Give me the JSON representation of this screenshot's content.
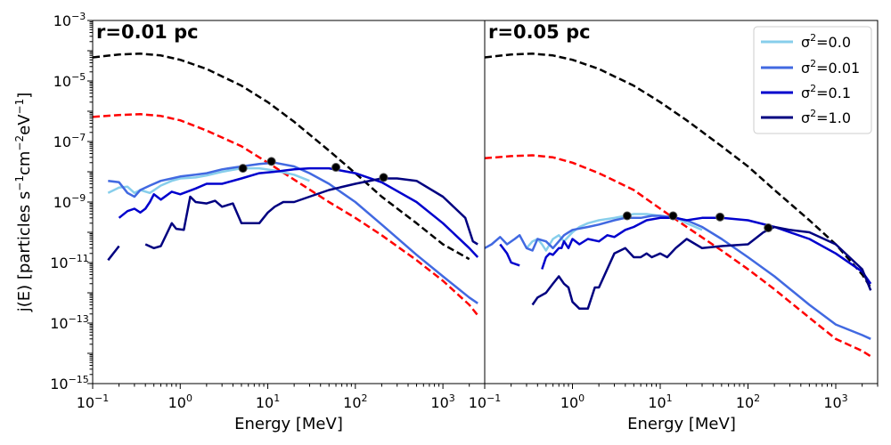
{
  "figure": {
    "ylabel": "j(E) [particles s",
    "ylabel_sup1": "−1",
    "ylabel_mid": "cm",
    "ylabel_sup2": "−2",
    "ylabel_end": "eV",
    "ylabel_sup3": "−1",
    "ylabel_close": "]"
  },
  "legend": {
    "location": "top-right of right panel",
    "entries": [
      {
        "base": "σ",
        "sup": "2",
        "rest": "=0.0",
        "color": "#87ceeb"
      },
      {
        "base": "σ",
        "sup": "2",
        "rest": "=0.01",
        "color": "#4169e1"
      },
      {
        "base": "σ",
        "sup": "2",
        "rest": "=0.1",
        "color": "#0000cd"
      },
      {
        "base": "σ",
        "sup": "2",
        "rest": "=1.0",
        "color": "#000080"
      }
    ]
  },
  "chart_data": [
    {
      "type": "line",
      "title": "r=0.01 pc",
      "xlabel": "Energy [MeV]",
      "ylabel": "j(E) [particles s^-1 cm^-2 eV^-1]",
      "xscale": "log",
      "yscale": "log",
      "xlim": [
        0.1,
        3000
      ],
      "ylim": [
        1e-15,
        0.001
      ],
      "xticks": [
        {
          "base": "10",
          "exp": "−1",
          "value": 0.1
        },
        {
          "base": "10",
          "exp": "0",
          "value": 1
        },
        {
          "base": "10",
          "exp": "1",
          "value": 10
        },
        {
          "base": "10",
          "exp": "2",
          "value": 100
        },
        {
          "base": "10",
          "exp": "3",
          "value": 1000
        }
      ],
      "yticks": [
        {
          "base": "10",
          "exp": "−15",
          "value": 1e-15
        },
        {
          "base": "10",
          "exp": "−13",
          "value": 1e-13
        },
        {
          "base": "10",
          "exp": "−11",
          "value": 1e-11
        },
        {
          "base": "10",
          "exp": "−9",
          "value": 1e-09
        },
        {
          "base": "10",
          "exp": "−7",
          "value": 1e-07
        },
        {
          "base": "10",
          "exp": "−5",
          "value": 1e-05
        },
        {
          "base": "10",
          "exp": "−3",
          "value": 0.001
        }
      ],
      "series": [
        {
          "name": "reference black dashed",
          "color": "#000000",
          "dash": true,
          "x": [
            0.1,
            0.2,
            0.35,
            0.6,
            1,
            2,
            5,
            10,
            20,
            50,
            100,
            200,
            500,
            1000,
            2000
          ],
          "y": [
            6e-05,
            7.5e-05,
            8e-05,
            7e-05,
            5e-05,
            2.5e-05,
            7e-06,
            2e-06,
            4.5e-07,
            5e-08,
            9e-09,
            1.5e-09,
            2e-10,
            4e-11,
            1.3e-11
          ]
        },
        {
          "name": "reference red dashed",
          "color": "#ff0000",
          "dash": true,
          "x": [
            0.1,
            0.2,
            0.35,
            0.6,
            1,
            2,
            5,
            10,
            20,
            50,
            100,
            200,
            500,
            1000,
            2000,
            2500
          ],
          "y": [
            6.5e-07,
            7.5e-07,
            8e-07,
            7e-07,
            5e-07,
            2.3e-07,
            7e-08,
            2e-08,
            5.5e-09,
            1e-09,
            3e-10,
            8e-11,
            1.2e-11,
            2.5e-12,
            4e-13,
            1.8e-13
          ]
        },
        {
          "name": "σ²=0.0",
          "color": "#87ceeb",
          "dash": false,
          "x": [
            0.15,
            0.2,
            0.25,
            0.3,
            0.35,
            0.45,
            0.6,
            0.8,
            1,
            1.5,
            2,
            3,
            5,
            8,
            12,
            20,
            30
          ],
          "y": [
            2e-09,
            3e-09,
            3.2e-09,
            2e-09,
            2.5e-09,
            2e-09,
            3.5e-09,
            5e-09,
            6e-09,
            6.5e-09,
            7.5e-09,
            1e-08,
            1.3e-08,
            1.3e-08,
            1.1e-08,
            8e-09,
            5e-09
          ]
        },
        {
          "name": "σ²=0.01",
          "color": "#4169e1",
          "dash": false,
          "x": [
            0.15,
            0.2,
            0.25,
            0.3,
            0.35,
            0.45,
            0.6,
            0.8,
            1,
            1.5,
            2,
            3,
            5,
            8,
            12,
            20,
            30,
            50,
            100,
            200,
            500,
            1000,
            2000,
            2500
          ],
          "y": [
            5e-09,
            4.5e-09,
            2e-09,
            1.5e-09,
            2.5e-09,
            3.5e-09,
            5e-09,
            6e-09,
            7e-09,
            8e-09,
            9e-09,
            1.2e-08,
            1.5e-08,
            1.8e-08,
            2e-08,
            1.5e-08,
            9e-09,
            4e-09,
            1e-09,
            1.8e-10,
            1.8e-11,
            3.5e-12,
            7e-13,
            4.5e-13
          ]
        },
        {
          "name": "σ²=0.1",
          "color": "#0000cd",
          "dash": false,
          "x": [
            0.2,
            0.25,
            0.3,
            0.35,
            0.4,
            0.45,
            0.5,
            0.6,
            0.8,
            1,
            1.5,
            2,
            3,
            5,
            8,
            12,
            20,
            30,
            50,
            100,
            200,
            500,
            1000,
            2000,
            2500
          ],
          "y": [
            3e-10,
            5e-10,
            6e-10,
            4.5e-10,
            6e-10,
            1e-09,
            1.8e-09,
            1.2e-09,
            2.2e-09,
            1.8e-09,
            2.8e-09,
            4e-09,
            4e-09,
            6e-09,
            9e-09,
            1e-08,
            1.2e-08,
            1.3e-08,
            1.3e-08,
            9e-09,
            4.5e-09,
            1e-09,
            2e-10,
            3e-11,
            1.5e-11
          ]
        },
        {
          "name": "σ²=1.0 seg1",
          "color": "#000080",
          "dash": false,
          "x": [
            0.15,
            0.2
          ],
          "y": [
            1.2e-11,
            3.5e-11
          ]
        },
        {
          "name": "σ²=1.0",
          "color": "#000080",
          "dash": false,
          "x": [
            0.4,
            0.5,
            0.6,
            0.8,
            0.9,
            1.1,
            1.3,
            1.5,
            2,
            2.5,
            3,
            4,
            5,
            7,
            8,
            10,
            12,
            15,
            20,
            30,
            50,
            100,
            200,
            300,
            500,
            1000,
            1800,
            2200,
            2500
          ],
          "y": [
            4e-11,
            3e-11,
            3.5e-11,
            2e-10,
            1.3e-10,
            1.2e-10,
            1.5e-09,
            1e-09,
            9e-10,
            1.1e-09,
            7e-10,
            9e-10,
            2e-10,
            2e-10,
            2e-10,
            4.5e-10,
            7e-10,
            1e-09,
            1e-09,
            1.5e-09,
            2.5e-09,
            4e-09,
            6e-09,
            6e-09,
            5e-09,
            1.5e-09,
            3e-10,
            5e-11,
            4e-11
          ]
        }
      ],
      "markers": [
        {
          "series": "σ²=0.0",
          "x": 5.2,
          "y": 1.3e-08
        },
        {
          "series": "σ²=0.01",
          "x": 11,
          "y": 2.2e-08
        },
        {
          "series": "σ²=0.1",
          "x": 60,
          "y": 1.4e-08
        },
        {
          "series": "σ²=1.0",
          "x": 210,
          "y": 6.5e-09
        }
      ]
    },
    {
      "type": "line",
      "title": "r=0.05 pc",
      "xlabel": "Energy [MeV]",
      "xscale": "log",
      "yscale": "log",
      "xlim": [
        0.1,
        3000
      ],
      "ylim": [
        1e-15,
        0.001
      ],
      "xticks": [
        {
          "base": "10",
          "exp": "−1",
          "value": 0.1
        },
        {
          "base": "10",
          "exp": "0",
          "value": 1
        },
        {
          "base": "10",
          "exp": "1",
          "value": 10
        },
        {
          "base": "10",
          "exp": "2",
          "value": 100
        },
        {
          "base": "10",
          "exp": "3",
          "value": 1000
        }
      ],
      "series": [
        {
          "name": "reference black dashed",
          "color": "#000000",
          "dash": true,
          "x": [
            0.1,
            0.2,
            0.35,
            0.6,
            1,
            2,
            5,
            10,
            20,
            50,
            100,
            200,
            500,
            1000,
            2000,
            2500
          ],
          "y": [
            6e-05,
            7.5e-05,
            8e-05,
            7e-05,
            5e-05,
            2.5e-05,
            7e-06,
            2e-06,
            5e-07,
            7e-08,
            1.5e-08,
            2.5e-09,
            2.5e-10,
            4e-11,
            4e-12,
            1.5e-12
          ]
        },
        {
          "name": "reference red dashed",
          "color": "#ff0000",
          "dash": true,
          "x": [
            0.1,
            0.2,
            0.35,
            0.6,
            1,
            2,
            5,
            10,
            20,
            50,
            100,
            200,
            500,
            1000,
            2000,
            2500
          ],
          "y": [
            2.8e-08,
            3.3e-08,
            3.5e-08,
            3e-08,
            2e-08,
            9e-09,
            2.5e-09,
            6e-10,
            1.5e-10,
            2.5e-11,
            6e-12,
            1.3e-12,
            1.5e-13,
            3e-14,
            1.2e-14,
            8e-15
          ]
        },
        {
          "name": "σ²=0.0",
          "color": "#87ceeb",
          "dash": false,
          "x": [
            0.3,
            0.35,
            0.4,
            0.45,
            0.5,
            0.6,
            0.7,
            0.8,
            1,
            1.2,
            1.5,
            2,
            3,
            4,
            5,
            7,
            10,
            15,
            20,
            30
          ],
          "y": [
            3e-11,
            5e-11,
            6e-11,
            4e-11,
            2.5e-11,
            6e-11,
            8e-11,
            5e-11,
            1e-10,
            1.5e-10,
            2e-10,
            2.5e-10,
            3e-10,
            3.5e-10,
            4e-10,
            4e-10,
            3.5e-10,
            3e-10,
            2e-10,
            1.2e-10
          ]
        },
        {
          "name": "σ²=0.01",
          "color": "#4169e1",
          "dash": false,
          "x": [
            0.1,
            0.12,
            0.15,
            0.18,
            0.22,
            0.25,
            0.3,
            0.35,
            0.4,
            0.5,
            0.6,
            0.7,
            0.8,
            1,
            1.5,
            2,
            3,
            4,
            6,
            8,
            10,
            15,
            20,
            30,
            50,
            100,
            200,
            500,
            1000,
            2000,
            2500
          ],
          "y": [
            3e-11,
            4e-11,
            7e-11,
            4e-11,
            6e-11,
            8e-11,
            3e-11,
            2.5e-11,
            6e-11,
            5e-11,
            3e-11,
            5e-11,
            8e-11,
            1.2e-10,
            1.5e-10,
            1.8e-10,
            2.5e-10,
            3e-10,
            3e-10,
            3.5e-10,
            3.5e-10,
            3e-10,
            2.5e-10,
            1.5e-10,
            6e-11,
            1.5e-11,
            3.5e-12,
            4e-13,
            9e-14,
            4e-14,
            3e-14
          ]
        },
        {
          "name": "σ²=0.1 seg1",
          "color": "#0000cd",
          "dash": false,
          "x": [
            0.15,
            0.18,
            0.2,
            0.25
          ],
          "y": [
            4e-11,
            2e-11,
            1e-11,
            8e-12
          ]
        },
        {
          "name": "σ²=0.1",
          "color": "#0000cd",
          "dash": false,
          "x": [
            0.45,
            0.5,
            0.55,
            0.6,
            0.7,
            0.75,
            0.8,
            0.9,
            1,
            1.2,
            1.5,
            2,
            2.5,
            3,
            4,
            5,
            7,
            10,
            15,
            20,
            30,
            50,
            100,
            200,
            500,
            1000,
            2000,
            2500
          ],
          "y": [
            6e-12,
            1.5e-11,
            2e-11,
            1.8e-11,
            3e-11,
            3e-11,
            5e-11,
            3e-11,
            6e-11,
            4e-11,
            6e-11,
            5e-11,
            8e-11,
            7e-11,
            1.2e-10,
            1.5e-10,
            2.5e-10,
            3e-10,
            3e-10,
            2.5e-10,
            3e-10,
            3e-10,
            2.5e-10,
            1.5e-10,
            6e-11,
            2e-11,
            5e-12,
            2e-12
          ]
        },
        {
          "name": "σ²=1.0",
          "color": "#000080",
          "dash": false,
          "x": [
            0.35,
            0.4,
            0.5,
            0.6,
            0.7,
            0.8,
            0.9,
            1,
            1.2,
            1.5,
            1.8,
            2,
            3,
            4,
            5,
            6,
            7,
            8,
            10,
            12,
            15,
            20,
            30,
            50,
            100,
            150,
            200,
            300,
            500,
            1000,
            2000,
            2500
          ],
          "y": [
            4e-13,
            7e-13,
            1e-12,
            2e-12,
            3.5e-12,
            2e-12,
            1.5e-12,
            5e-13,
            3e-13,
            3e-13,
            1.5e-12,
            1.5e-12,
            2e-11,
            3e-11,
            1.5e-11,
            1.5e-11,
            2e-11,
            1.5e-11,
            2e-11,
            1.5e-11,
            3e-11,
            6e-11,
            3e-11,
            3.5e-11,
            4e-11,
            1e-10,
            1.5e-10,
            1.2e-10,
            1e-10,
            4e-11,
            6e-12,
            1.2e-12
          ]
        }
      ],
      "markers": [
        {
          "series": "σ²=0.0",
          "x": 4.2,
          "y": 3.5e-10
        },
        {
          "series": "σ²=0.01",
          "x": 14,
          "y": 3.5e-10
        },
        {
          "series": "σ²=0.1",
          "x": 48,
          "y": 3.2e-10
        },
        {
          "series": "σ²=1.0",
          "x": 170,
          "y": 1.4e-10
        }
      ]
    }
  ]
}
